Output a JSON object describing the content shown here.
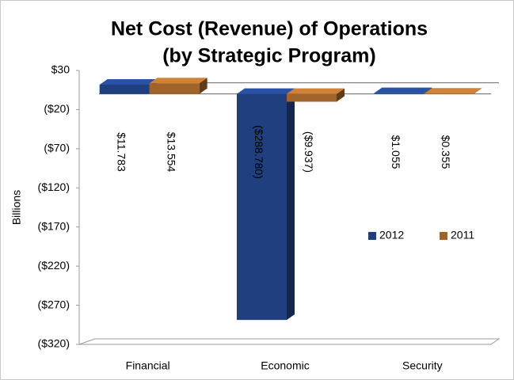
{
  "chart_data": {
    "type": "bar",
    "title": [
      "Net Cost (Revenue) of Operations",
      "(by Strategic Program)"
    ],
    "ylabel": "Billions",
    "categories": [
      "Financial",
      "Economic",
      "Security"
    ],
    "series": [
      {
        "name": "2012",
        "color": "#1f3f7f",
        "values": [
          11.783,
          -288.78,
          1.055
        ],
        "value_labels": [
          "$11.783",
          "($288.780)",
          "$1.055"
        ]
      },
      {
        "name": "2011",
        "color": "#a0642a",
        "values": [
          13.554,
          -9.937,
          0.355
        ],
        "value_labels": [
          "$13.554",
          "($9.937)",
          "$0.355"
        ]
      }
    ],
    "ylim": [
      -320,
      30
    ],
    "yticks": [
      {
        "value": 30,
        "label": "$30"
      },
      {
        "value": -20,
        "label": "($20)"
      },
      {
        "value": -70,
        "label": "($70)"
      },
      {
        "value": -120,
        "label": "($120)"
      },
      {
        "value": -170,
        "label": "($170)"
      },
      {
        "value": -220,
        "label": "($220)"
      },
      {
        "value": -270,
        "label": "($270)"
      },
      {
        "value": -320,
        "label": "($320)"
      }
    ],
    "negative_label_color": "#e00000",
    "legend": "right"
  }
}
